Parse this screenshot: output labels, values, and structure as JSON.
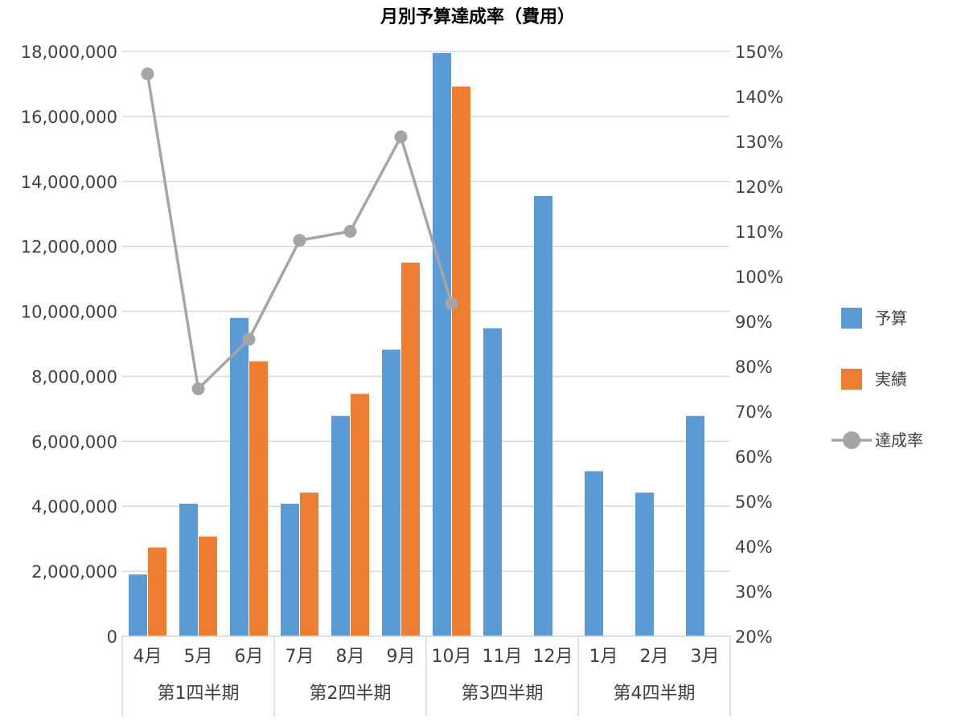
{
  "chart_data": {
    "type": "bar",
    "title": "月別予算達成率（費用）",
    "categories": [
      "4月",
      "5月",
      "6月",
      "7月",
      "8月",
      "9月",
      "10月",
      "11月",
      "12月",
      "1月",
      "2月",
      "3月"
    ],
    "groups": [
      {
        "label": "第1四半期",
        "span": 3
      },
      {
        "label": "第2四半期",
        "span": 3
      },
      {
        "label": "第3四半期",
        "span": 3
      },
      {
        "label": "第4四半期",
        "span": 3
      }
    ],
    "series": [
      {
        "name": "予算",
        "type": "bar",
        "axis": "left",
        "color": "#5B9BD5",
        "values": [
          1900000,
          4080000,
          9800000,
          4080000,
          6780000,
          8820000,
          17950000,
          9480000,
          13550000,
          5080000,
          4420000,
          6780000
        ]
      },
      {
        "name": "実績",
        "type": "bar",
        "axis": "left",
        "color": "#ED7D31",
        "values": [
          2730000,
          3070000,
          8460000,
          4420000,
          7460000,
          11500000,
          16920000,
          null,
          null,
          null,
          null,
          null
        ]
      },
      {
        "name": "達成率",
        "type": "line",
        "axis": "right",
        "color": "#A5A5A5",
        "values": [
          1.45,
          0.75,
          0.86,
          1.08,
          1.1,
          1.31,
          0.94,
          null,
          null,
          null,
          null,
          null
        ]
      }
    ],
    "y_left": {
      "min": 0,
      "max": 18000000,
      "step": 2000000,
      "tick_labels": [
        "0",
        "2,000,000",
        "4,000,000",
        "6,000,000",
        "8,000,000",
        "10,000,000",
        "12,000,000",
        "14,000,000",
        "16,000,000",
        "18,000,000"
      ]
    },
    "y_right": {
      "min": 0.2,
      "max": 1.5,
      "step": 0.1,
      "tick_labels": [
        "20%",
        "30%",
        "40%",
        "50%",
        "60%",
        "70%",
        "80%",
        "90%",
        "100%",
        "110%",
        "120%",
        "130%",
        "140%",
        "150%"
      ]
    },
    "grid": true,
    "legend": "right"
  }
}
